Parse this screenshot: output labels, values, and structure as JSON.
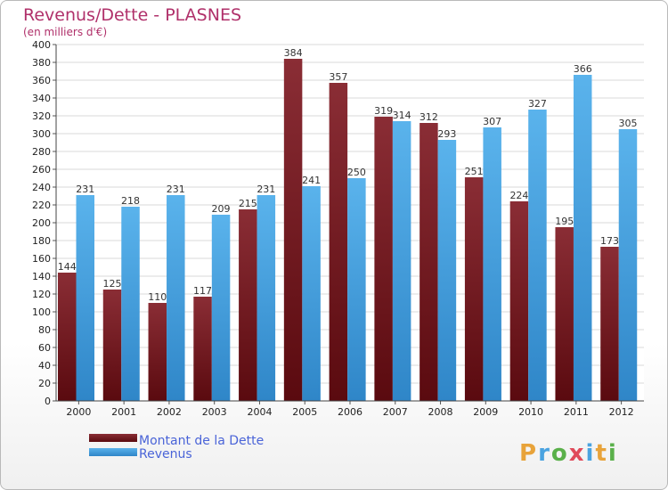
{
  "chart_data": {
    "type": "bar",
    "title": "Revenus/Dette - PLASNES",
    "subtitle": "(en milliers d'€)",
    "categories": [
      "2000",
      "2001",
      "2002",
      "2003",
      "2004",
      "2005",
      "2006",
      "2007",
      "2008",
      "2009",
      "2010",
      "2011",
      "2012"
    ],
    "series": [
      {
        "name": "Montant de la Dette",
        "color": "#7b1f24",
        "values": [
          144,
          125,
          110,
          117,
          215,
          384,
          357,
          319,
          312,
          251,
          224,
          195,
          173
        ]
      },
      {
        "name": "Revenus",
        "color": "#4aa3e0",
        "values": [
          231,
          218,
          231,
          209,
          231,
          241,
          250,
          314,
          293,
          307,
          327,
          366,
          305
        ]
      }
    ],
    "ylim": [
      0,
      400
    ],
    "ytick_step": 20,
    "grid": true,
    "legend_position": "bottom-left"
  },
  "logo": {
    "text": "Proxiti"
  }
}
